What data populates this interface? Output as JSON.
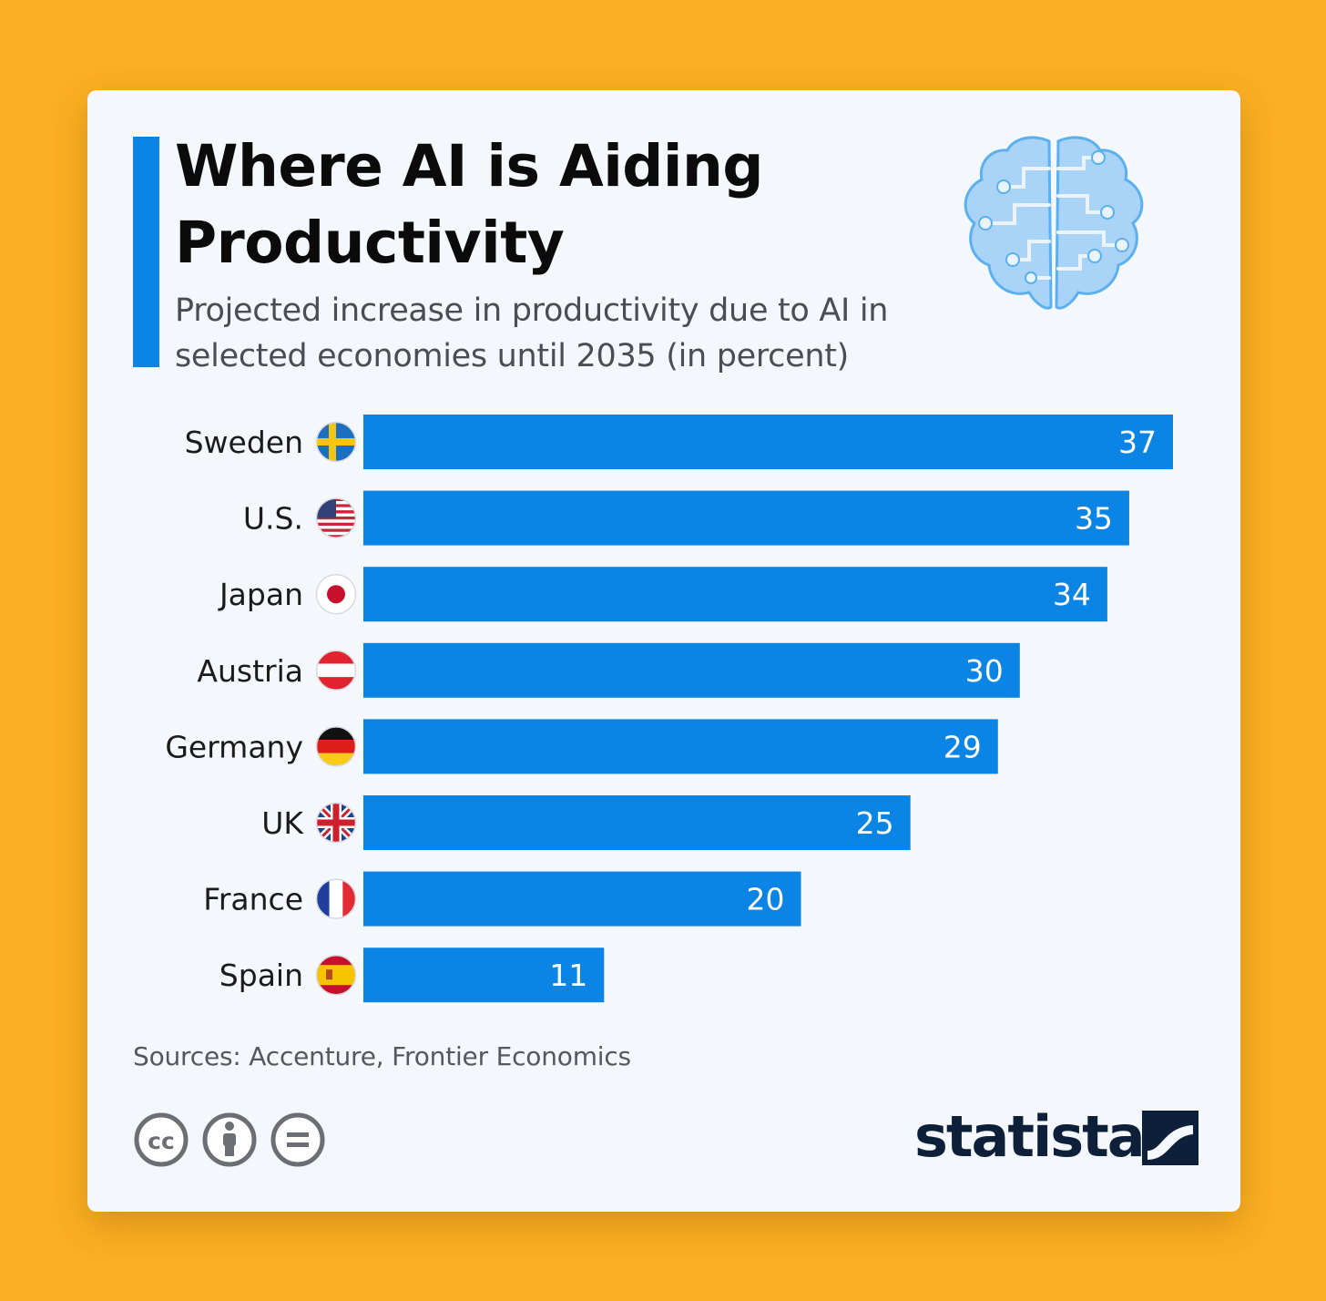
{
  "header": {
    "title": "Where AI is Aiding Productivity",
    "subtitle": "Projected increase in productivity due to AI in selected economies until 2035 (in percent)"
  },
  "footer": {
    "source": "Sources: Accenture, Frontier Economics",
    "license_icons": [
      "cc-icon",
      "by-attribution-icon",
      "nd-equals-icon"
    ],
    "logo_text": "statista"
  },
  "colors": {
    "background": "#fbaf22",
    "card": "#f4f7fb",
    "bar": "#0a85e6",
    "accent": "#0a85e6",
    "logo": "#0e1f39"
  },
  "chart_data": {
    "type": "bar",
    "orientation": "horizontal",
    "categories": [
      "Sweden",
      "U.S.",
      "Japan",
      "Austria",
      "Germany",
      "UK",
      "France",
      "Spain"
    ],
    "values": [
      37,
      35,
      34,
      30,
      29,
      25,
      20,
      11
    ],
    "flags": [
      "sweden-flag-icon",
      "us-flag-icon",
      "japan-flag-icon",
      "austria-flag-icon",
      "germany-flag-icon",
      "uk-flag-icon",
      "france-flag-icon",
      "spain-flag-icon"
    ],
    "xlim": [
      0,
      37
    ],
    "data_labels": true,
    "grid": false,
    "legend": "none"
  }
}
